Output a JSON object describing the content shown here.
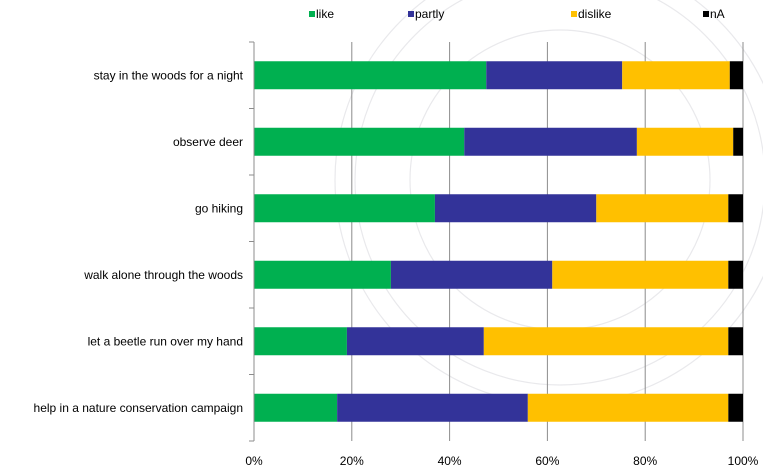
{
  "chart_data": {
    "type": "bar",
    "orientation": "horizontal",
    "stacked": true,
    "categories": [
      "stay in the woods for a night",
      "observe deer",
      "go hiking",
      "walk alone through the woods",
      "let a beetle run over my hand",
      "help in a nature conservation campaign"
    ],
    "series": [
      {
        "name": "like",
        "color": "#00b050",
        "values": [
          47.5,
          43,
          37,
          28,
          19,
          17
        ]
      },
      {
        "name": "partly",
        "color": "#333399",
        "values": [
          27.8,
          35.3,
          33,
          33,
          28,
          39
        ]
      },
      {
        "name": "dislike",
        "color": "#ffc000",
        "values": [
          22,
          19.7,
          27,
          36,
          50,
          41
        ]
      },
      {
        "name": "nA",
        "color": "#000000",
        "values": [
          2.7,
          2,
          3,
          3,
          3,
          3
        ]
      }
    ],
    "xlim": [
      0,
      100
    ],
    "x_ticks": [
      "0%",
      "20%",
      "40%",
      "60%",
      "80%",
      "100%"
    ],
    "grid": true,
    "legend_position": "top"
  }
}
